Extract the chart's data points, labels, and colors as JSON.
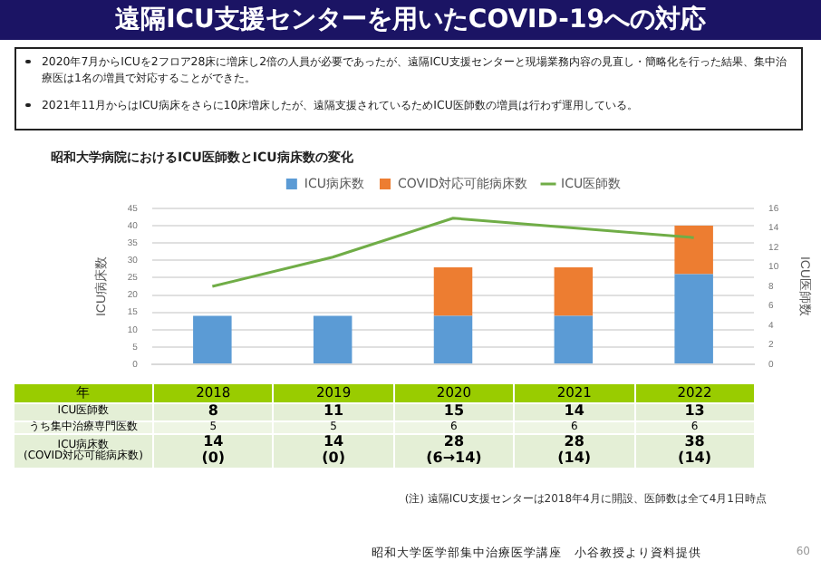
{
  "chart_data": {
    "type": "bar",
    "title": "遠隔ICU支援センターを用いたCOVID-19への対応",
    "subtitle": "昭和大学病院におけるICU医師数とICU病床数の変化",
    "categories": [
      "2018",
      "2019",
      "2020",
      "2021",
      "2022"
    ],
    "stacked": true,
    "series": [
      {
        "name": "ICU病床数",
        "color": "#5b9bd5",
        "values": [
          14,
          14,
          14,
          14,
          26
        ]
      },
      {
        "name": "COVID対応可能病床数",
        "color": "#ed7d31",
        "values": [
          0,
          0,
          14,
          14,
          14
        ]
      },
      {
        "name": "ICU医師数",
        "type": "line",
        "axis": "y2",
        "color": "#70ad47",
        "values": [
          8,
          11,
          15,
          14,
          13
        ]
      }
    ],
    "ylabel": "ICU病床数",
    "y2label": "ICU医師数",
    "ylim": [
      0,
      45
    ],
    "yticks": [
      0,
      5,
      10,
      15,
      20,
      25,
      30,
      35,
      40,
      45
    ],
    "y2lim": [
      0,
      16
    ],
    "y2ticks": [
      0,
      2,
      4,
      6,
      8,
      10,
      12,
      14,
      16
    ],
    "grid": "y",
    "legend": "top",
    "marker": "none",
    "tick_labels": "y",
    "annotations": [
      "2020年7月からICUを2フロア28床に増床し2倍の人員が必要であったが、遠隔ICU支援センターと現場業務内容の見直し・簡略化を行った結果、集中治療医は1名の増員で対応することができた。",
      "2021年11月からはICU病床をさらに10床増床したが、遠隔支援されているためICU医師数の増員は行わず運用している。",
      "年",
      "ICU医師数",
      "8",
      "11",
      "15",
      "14",
      "13",
      "うち集中治療専門医数",
      "5",
      "5",
      "6",
      "6",
      "6",
      "ICU病床数\n(COVID対応可能病床数)",
      "14\n(0)",
      "14\n(0)",
      "28\n(6→14)",
      "28\n(14)",
      "38\n(14)",
      "(注) 遠隔ICU支援センターは2018年4月に開設、医師数は全て4月1日時点",
      "昭和大学医学部集中治療医学講座　小谷教授より資料提供",
      "60"
    ]
  }
}
